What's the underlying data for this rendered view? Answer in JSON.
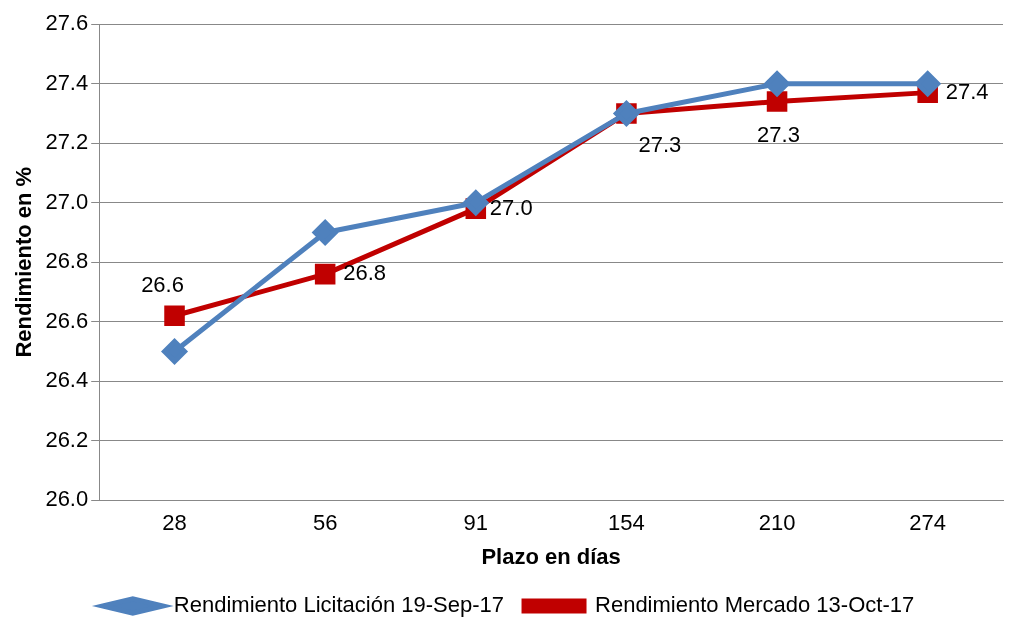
{
  "chart_data": {
    "type": "line",
    "xlabel": "Plazo en días",
    "ylabel": "Rendimiento en %",
    "categories": [
      "28",
      "56",
      "91",
      "154",
      "210",
      "274"
    ],
    "series": [
      {
        "name": "Rendimiento Licitación 19-Sep-17",
        "color": "#4f81bd",
        "marker": "diamond",
        "values": [
          26.5,
          26.9,
          27.0,
          27.3,
          27.4,
          27.4
        ]
      },
      {
        "name": "Rendimiento Mercado 13-Oct-17",
        "color": "#c00000",
        "marker": "square",
        "values": [
          26.62,
          26.76,
          26.98,
          27.3,
          27.34,
          27.37
        ],
        "value_labels": [
          "26.6",
          "26.8",
          "27.0",
          "27.3",
          "27.3",
          "27.4"
        ]
      }
    ],
    "ylim": [
      26.0,
      27.6
    ],
    "yticks": [
      {
        "value": 26.0,
        "label": "26.0"
      },
      {
        "value": 26.2,
        "label": "26.2"
      },
      {
        "value": 26.4,
        "label": "26.4"
      },
      {
        "value": 26.6,
        "label": "26.6"
      },
      {
        "value": 26.8,
        "label": "26.8"
      },
      {
        "value": 27.0,
        "label": "27.0"
      },
      {
        "value": 27.2,
        "label": "27.2"
      },
      {
        "value": 27.4,
        "label": "27.4"
      },
      {
        "value": 27.6,
        "label": "27.6"
      }
    ],
    "grid": "y",
    "legend": "bottom",
    "line_style": "solid"
  }
}
